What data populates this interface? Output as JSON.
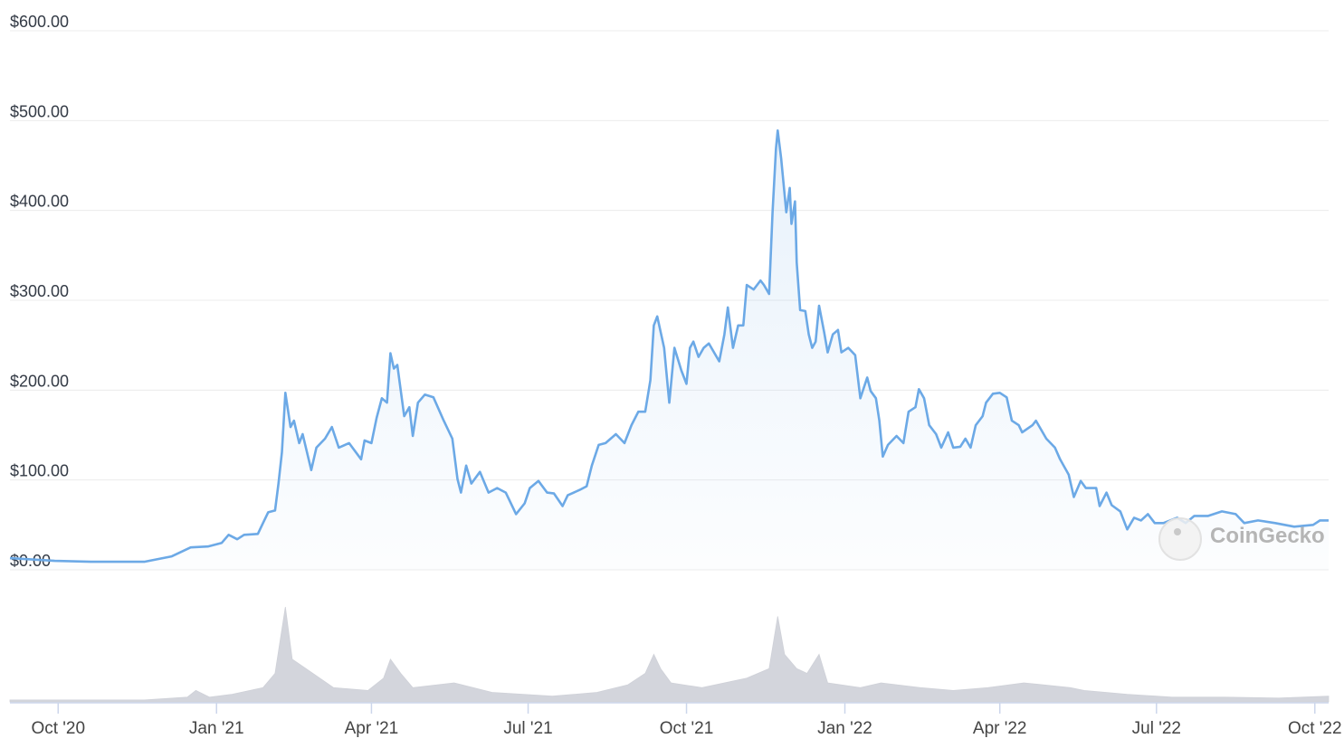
{
  "chart_data": {
    "type": "area",
    "title": "",
    "xlabel": "",
    "ylabel": "",
    "ylim": [
      0,
      600
    ],
    "xlim": [
      "2020-09-03",
      "2022-10-09"
    ],
    "grid": true,
    "legend": "none",
    "y_ticks": [
      "$0.00",
      "$100.00",
      "$200.00",
      "$300.00",
      "$400.00",
      "$500.00",
      "$600.00"
    ],
    "y_tick_values": [
      0,
      100,
      200,
      300,
      400,
      500,
      600
    ],
    "x_ticks": [
      "Oct '20",
      "Jan '21",
      "Apr '21",
      "Jul '21",
      "Oct '21",
      "Jan '22",
      "Apr '22",
      "Jul '22",
      "Oct '22"
    ],
    "x_tick_dates": [
      "2020-10-01",
      "2021-01-01",
      "2021-04-01",
      "2021-07-01",
      "2021-10-01",
      "2022-01-01",
      "2022-04-01",
      "2022-07-01",
      "2022-10-01"
    ],
    "line_color": "#6ca9e6",
    "volume_color": "#d3d5dc",
    "series": [
      {
        "x": [
          "2020-09-03",
          "2020-09-29",
          "2020-10-20",
          "2020-11-20",
          "2020-12-06",
          "2020-12-17",
          "2020-12-27",
          "2021-01-04",
          "2021-01-08",
          "2021-01-13",
          "2021-01-17",
          "2021-01-25",
          "2021-01-28",
          "2021-01-31",
          "2021-02-04",
          "2021-02-06",
          "2021-02-08",
          "2021-02-10",
          "2021-02-13",
          "2021-02-15",
          "2021-02-18",
          "2021-02-20",
          "2021-02-25",
          "2021-02-28",
          "2021-03-05",
          "2021-03-09",
          "2021-03-13",
          "2021-03-19",
          "2021-03-26",
          "2021-03-28",
          "2021-04-01",
          "2021-04-04",
          "2021-04-07",
          "2021-04-10",
          "2021-04-12",
          "2021-04-14",
          "2021-04-16",
          "2021-04-20",
          "2021-04-23",
          "2021-04-25",
          "2021-04-28",
          "2021-05-02",
          "2021-05-07",
          "2021-05-13",
          "2021-05-18",
          "2021-05-21",
          "2021-05-23",
          "2021-05-26",
          "2021-05-29",
          "2021-06-03",
          "2021-06-08",
          "2021-06-13",
          "2021-06-18",
          "2021-06-24",
          "2021-06-29",
          "2021-07-02",
          "2021-07-07",
          "2021-07-12",
          "2021-07-16",
          "2021-07-21",
          "2021-07-24",
          "2021-07-31",
          "2021-08-04",
          "2021-08-07",
          "2021-08-11",
          "2021-08-15",
          "2021-08-21",
          "2021-08-26",
          "2021-08-30",
          "2021-09-03",
          "2021-09-07",
          "2021-09-10",
          "2021-09-12",
          "2021-09-14",
          "2021-09-18",
          "2021-09-21",
          "2021-09-24",
          "2021-09-28",
          "2021-10-01",
          "2021-10-03",
          "2021-10-05",
          "2021-10-08",
          "2021-10-11",
          "2021-10-14",
          "2021-10-20",
          "2021-10-23",
          "2021-10-25",
          "2021-10-28",
          "2021-10-31",
          "2021-11-03",
          "2021-11-05",
          "2021-11-09",
          "2021-11-13",
          "2021-11-15",
          "2021-11-18",
          "2021-11-20",
          "2021-11-22",
          "2021-11-23",
          "2021-11-25",
          "2021-11-28",
          "2021-11-30",
          "2021-12-01",
          "2021-12-03",
          "2021-12-04",
          "2021-12-06",
          "2021-12-09",
          "2021-12-11",
          "2021-12-13",
          "2021-12-15",
          "2021-12-17",
          "2021-12-20",
          "2021-12-22",
          "2021-12-25",
          "2021-12-28",
          "2021-12-30",
          "2022-01-03",
          "2022-01-07",
          "2022-01-10",
          "2022-01-14",
          "2022-01-16",
          "2022-01-19",
          "2022-01-21",
          "2022-01-23",
          "2022-01-26",
          "2022-01-31",
          "2022-02-04",
          "2022-02-07",
          "2022-02-11",
          "2022-02-13",
          "2022-02-16",
          "2022-02-19",
          "2022-02-23",
          "2022-02-26",
          "2022-03-02",
          "2022-03-05",
          "2022-03-09",
          "2022-03-12",
          "2022-03-15",
          "2022-03-18",
          "2022-03-22",
          "2022-03-24",
          "2022-03-28",
          "2022-04-01",
          "2022-04-05",
          "2022-04-08",
          "2022-04-12",
          "2022-04-14",
          "2022-04-20",
          "2022-04-22",
          "2022-04-28",
          "2022-05-03",
          "2022-05-06",
          "2022-05-11",
          "2022-05-14",
          "2022-05-18",
          "2022-05-21",
          "2022-05-27",
          "2022-05-29",
          "2022-06-02",
          "2022-06-05",
          "2022-06-10",
          "2022-06-14",
          "2022-06-18",
          "2022-06-22",
          "2022-06-26",
          "2022-06-30",
          "2022-07-05",
          "2022-07-13",
          "2022-07-18",
          "2022-07-23",
          "2022-07-31",
          "2022-08-08",
          "2022-08-16",
          "2022-08-21",
          "2022-08-29",
          "2022-09-08",
          "2022-09-19",
          "2022-09-30",
          "2022-10-04",
          "2022-10-09"
        ],
        "values": [
          13,
          10,
          9,
          9,
          15,
          25,
          26,
          30,
          39,
          34,
          39,
          40,
          52,
          64,
          66,
          96,
          131,
          197,
          159,
          166,
          141,
          151,
          111,
          136,
          146,
          159,
          136,
          141,
          123,
          144,
          141,
          169,
          191,
          186,
          241,
          224,
          228,
          171,
          181,
          149,
          186,
          195,
          192,
          166,
          146,
          101,
          86,
          116,
          96,
          109,
          86,
          91,
          86,
          62,
          74,
          91,
          99,
          86,
          85,
          71,
          83,
          89,
          93,
          116,
          139,
          141,
          151,
          141,
          161,
          176,
          176,
          211,
          272,
          282,
          247,
          186,
          247,
          222,
          207,
          247,
          254,
          237,
          247,
          252,
          232,
          262,
          292,
          247,
          272,
          272,
          317,
          312,
          322,
          317,
          307,
          398,
          469,
          489,
          458,
          398,
          425,
          385,
          410,
          342,
          289,
          288,
          262,
          247,
          254,
          294,
          264,
          242,
          262,
          267,
          242,
          247,
          239,
          191,
          214,
          199,
          191,
          166,
          126,
          139,
          149,
          141,
          176,
          181,
          201,
          191,
          161,
          151,
          136,
          153,
          136,
          137,
          146,
          136,
          161,
          171,
          186,
          196,
          197,
          192,
          166,
          161,
          153,
          161,
          166,
          146,
          136,
          123,
          106,
          81,
          99,
          91,
          91,
          71,
          86,
          72,
          65,
          45,
          58,
          55,
          62,
          52,
          52,
          58,
          52,
          60,
          60,
          65,
          62,
          52,
          55,
          52,
          48,
          50,
          55,
          55
        ]
      }
    ],
    "volume": {
      "x": [
        "2020-09-03",
        "2020-11-20",
        "2020-12-15",
        "2020-12-20",
        "2020-12-28",
        "2021-01-10",
        "2021-01-28",
        "2021-02-04",
        "2021-02-10",
        "2021-02-14",
        "2021-02-22",
        "2021-03-10",
        "2021-03-30",
        "2021-04-08",
        "2021-04-12",
        "2021-04-18",
        "2021-04-25",
        "2021-05-19",
        "2021-06-10",
        "2021-07-15",
        "2021-08-10",
        "2021-08-28",
        "2021-09-07",
        "2021-09-12",
        "2021-09-16",
        "2021-09-22",
        "2021-10-10",
        "2021-11-05",
        "2021-11-18",
        "2021-11-23",
        "2021-11-27",
        "2021-12-04",
        "2021-12-10",
        "2021-12-17",
        "2021-12-22",
        "2022-01-10",
        "2022-01-22",
        "2022-02-14",
        "2022-03-05",
        "2022-03-25",
        "2022-04-15",
        "2022-05-12",
        "2022-05-20",
        "2022-06-14",
        "2022-07-10",
        "2022-08-10",
        "2022-09-10",
        "2022-10-09"
      ],
      "relative": [
        0.02,
        0.02,
        0.05,
        0.12,
        0.05,
        0.08,
        0.15,
        0.3,
        1.0,
        0.45,
        0.35,
        0.15,
        0.12,
        0.25,
        0.45,
        0.3,
        0.15,
        0.2,
        0.1,
        0.06,
        0.1,
        0.18,
        0.3,
        0.5,
        0.35,
        0.2,
        0.15,
        0.25,
        0.35,
        0.9,
        0.5,
        0.35,
        0.3,
        0.5,
        0.2,
        0.15,
        0.2,
        0.15,
        0.12,
        0.15,
        0.2,
        0.15,
        0.12,
        0.08,
        0.05,
        0.05,
        0.04,
        0.06
      ]
    }
  },
  "watermark": {
    "text": "CoinGecko"
  }
}
